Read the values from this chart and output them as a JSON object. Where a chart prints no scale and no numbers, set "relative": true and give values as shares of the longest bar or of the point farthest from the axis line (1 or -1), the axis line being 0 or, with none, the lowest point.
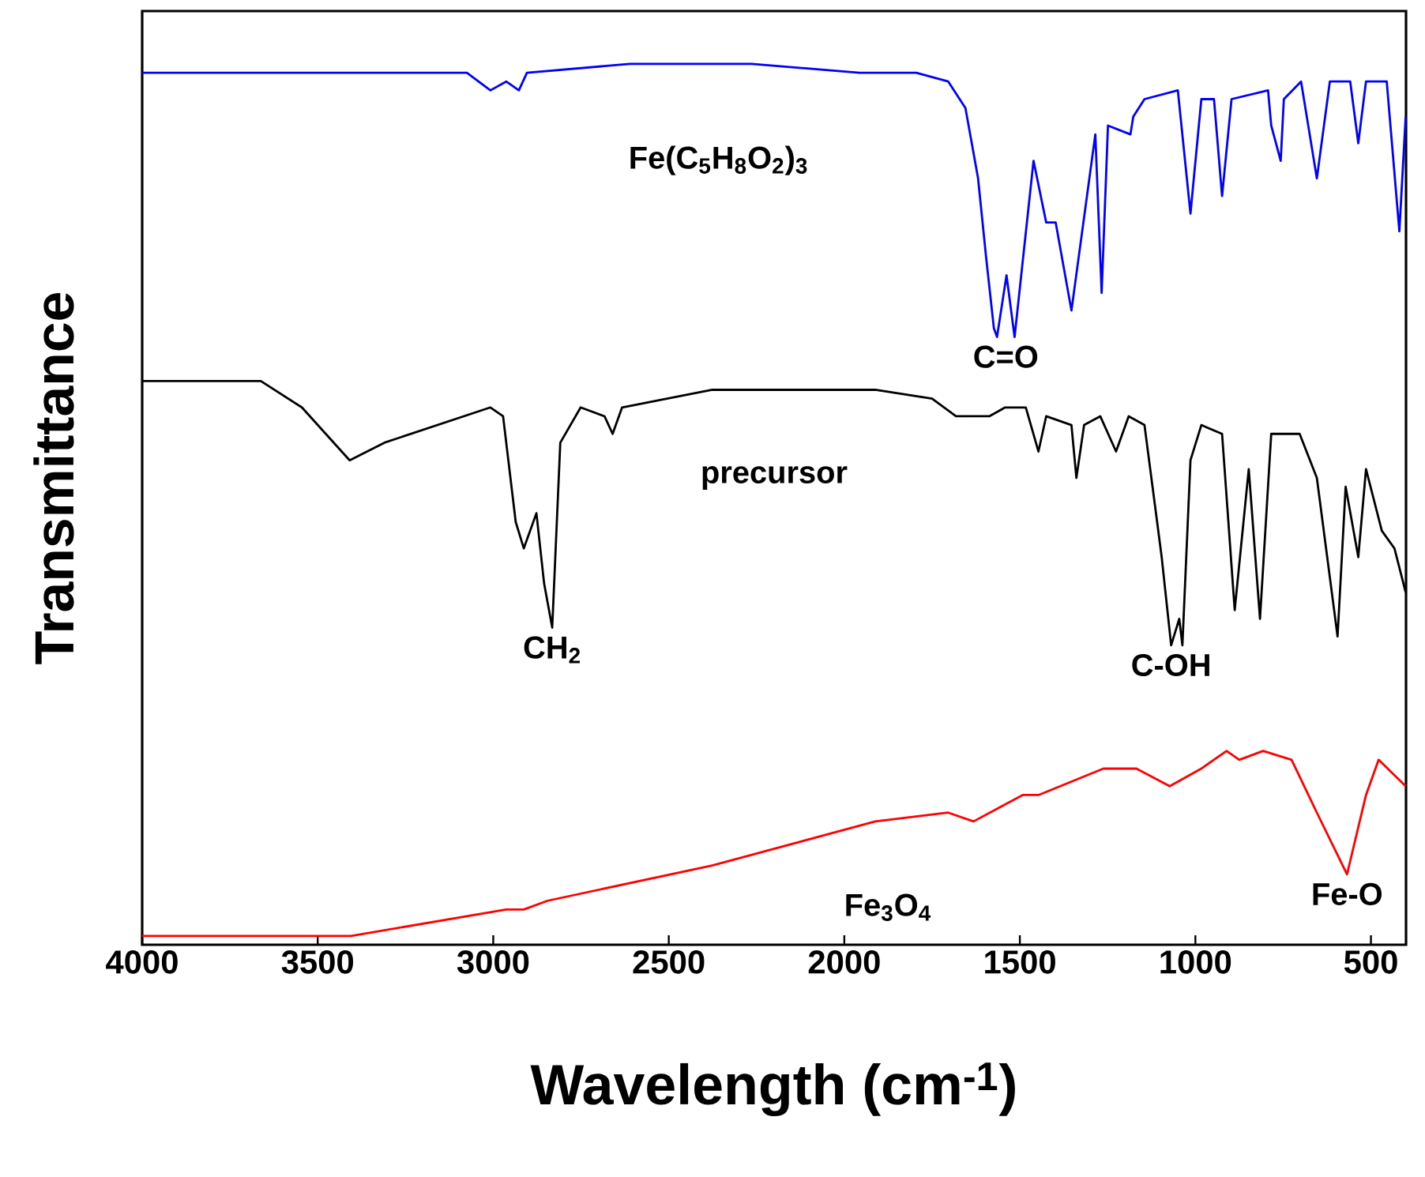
{
  "chart_data": {
    "type": "line",
    "relative": true,
    "xlabel": "Wavelength (cm$^{-1}$)",
    "ylabel": "Transmittance",
    "xlim": [
      4000,
      400
    ],
    "xticks": [
      4000,
      3500,
      3000,
      2500,
      2000,
      1500,
      1000,
      500
    ],
    "series": [
      {
        "name": "Fe(C$_{5}$H$_{8}$O$_{2}$)$_{3}$",
        "color": "#0000ff",
        "x": [
          4000,
          3075,
          3008,
          2963,
          2927,
          2904,
          2611,
          2264,
          1957,
          1795,
          1704,
          1655,
          1619,
          1596,
          1574,
          1565,
          1538,
          1515,
          1461,
          1425,
          1398,
          1353,
          1285,
          1267,
          1249,
          1185,
          1177,
          1145,
          1050,
          1014,
          983,
          947,
          924,
          897,
          793,
          784,
          757,
          748,
          699,
          654,
          617,
          559,
          536,
          514,
          455,
          419,
          401
        ],
        "values": [
          0.99,
          0.99,
          0.97,
          0.98,
          0.97,
          0.99,
          1.0,
          1.0,
          0.99,
          0.99,
          0.98,
          0.95,
          0.87,
          0.78,
          0.7,
          0.69,
          0.76,
          0.69,
          0.89,
          0.82,
          0.82,
          0.72,
          0.92,
          0.74,
          0.93,
          0.92,
          0.94,
          0.96,
          0.97,
          0.83,
          0.96,
          0.96,
          0.85,
          0.96,
          0.97,
          0.93,
          0.89,
          0.96,
          0.98,
          0.87,
          0.98,
          0.98,
          0.91,
          0.98,
          0.98,
          0.81,
          0.94
        ]
      },
      {
        "name": "precursor",
        "color": "#000000",
        "x": [
          4000,
          3662,
          3545,
          3409,
          3310,
          3008,
          2972,
          2936,
          2913,
          2877,
          2855,
          2832,
          2809,
          2751,
          2683,
          2660,
          2633,
          2376,
          1912,
          1750,
          1682,
          1587,
          1542,
          1483,
          1447,
          1425,
          1353,
          1339,
          1317,
          1271,
          1226,
          1190,
          1145,
          1109,
          1096,
          1069,
          1046,
          1037,
          1014,
          983,
          924,
          888,
          848,
          816,
          784,
          703,
          654,
          595,
          572,
          536,
          514,
          469,
          433,
          401
        ],
        "values": [
          0.64,
          0.64,
          0.61,
          0.55,
          0.57,
          0.61,
          0.6,
          0.48,
          0.45,
          0.49,
          0.41,
          0.36,
          0.57,
          0.61,
          0.6,
          0.58,
          0.61,
          0.63,
          0.63,
          0.62,
          0.6,
          0.6,
          0.61,
          0.61,
          0.56,
          0.6,
          0.59,
          0.53,
          0.59,
          0.6,
          0.56,
          0.6,
          0.59,
          0.48,
          0.44,
          0.34,
          0.37,
          0.34,
          0.55,
          0.59,
          0.58,
          0.38,
          0.54,
          0.37,
          0.58,
          0.58,
          0.53,
          0.35,
          0.52,
          0.44,
          0.54,
          0.47,
          0.45,
          0.4
        ]
      },
      {
        "name": "Fe$_{3}$O$_{4}$",
        "color": "#ff0000",
        "x": [
          4000,
          3662,
          3405,
          2963,
          2913,
          2845,
          2376,
          1912,
          1704,
          1632,
          1492,
          1447,
          1262,
          1168,
          1073,
          983,
          911,
          875,
          807,
          726,
          654,
          568,
          514,
          478,
          401
        ],
        "values": [
          0.01,
          0.01,
          0.01,
          0.04,
          0.04,
          0.05,
          0.09,
          0.14,
          0.15,
          0.14,
          0.17,
          0.17,
          0.2,
          0.2,
          0.18,
          0.2,
          0.22,
          0.21,
          0.22,
          0.21,
          0.15,
          0.08,
          0.17,
          0.21,
          0.18
        ]
      }
    ],
    "annotations": [
      {
        "text": "C=O",
        "x": 1540,
        "y": 0.69
      },
      {
        "text": "CH$_{2}$",
        "x": 2832,
        "y": 0.36
      },
      {
        "text": "C-OH",
        "x": 1069,
        "y": 0.34
      },
      {
        "text": "Fe-O",
        "x": 568,
        "y": 0.08
      }
    ]
  }
}
